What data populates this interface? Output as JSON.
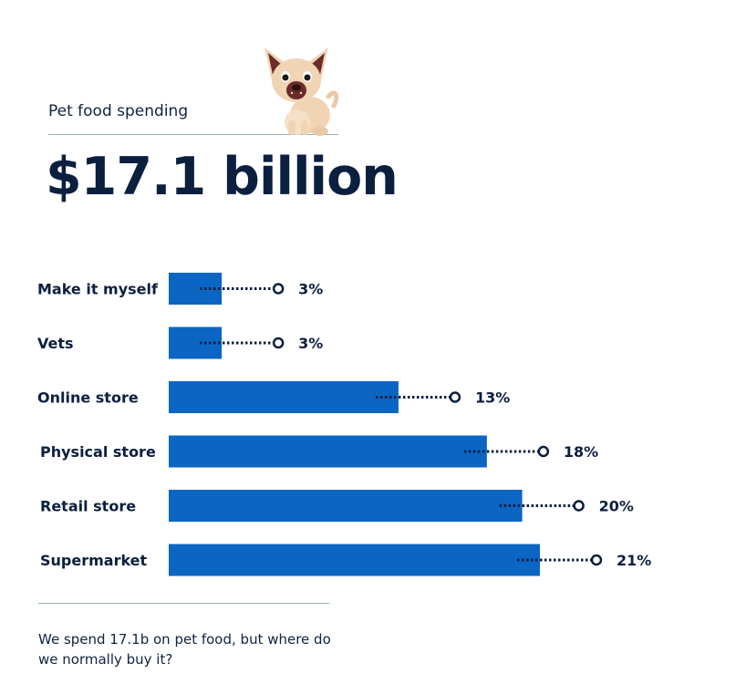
{
  "header": {
    "label": "Pet food spending",
    "headline": "$17.1 billion"
  },
  "illustration": {
    "icon": "dog-icon"
  },
  "chart_data": {
    "type": "bar",
    "orientation": "horizontal",
    "categories": [
      "Make it myself",
      "Vets",
      "Online store",
      "Physical store",
      "Retail store",
      "Supermarket"
    ],
    "values": [
      3,
      3,
      13,
      18,
      20,
      21
    ],
    "value_labels": [
      "3%",
      "3%",
      "13%",
      "18%",
      "20%",
      "21%"
    ],
    "unit": "%",
    "title": "",
    "xlabel": "",
    "ylabel": "",
    "xlim": [
      0,
      21
    ],
    "grid": false,
    "legend": "none",
    "colors": {
      "bar": "#0b66c3",
      "dots": "#0b1f3f"
    }
  },
  "footnote": "We spend 17.1b on pet food, but where do we normally buy it?"
}
